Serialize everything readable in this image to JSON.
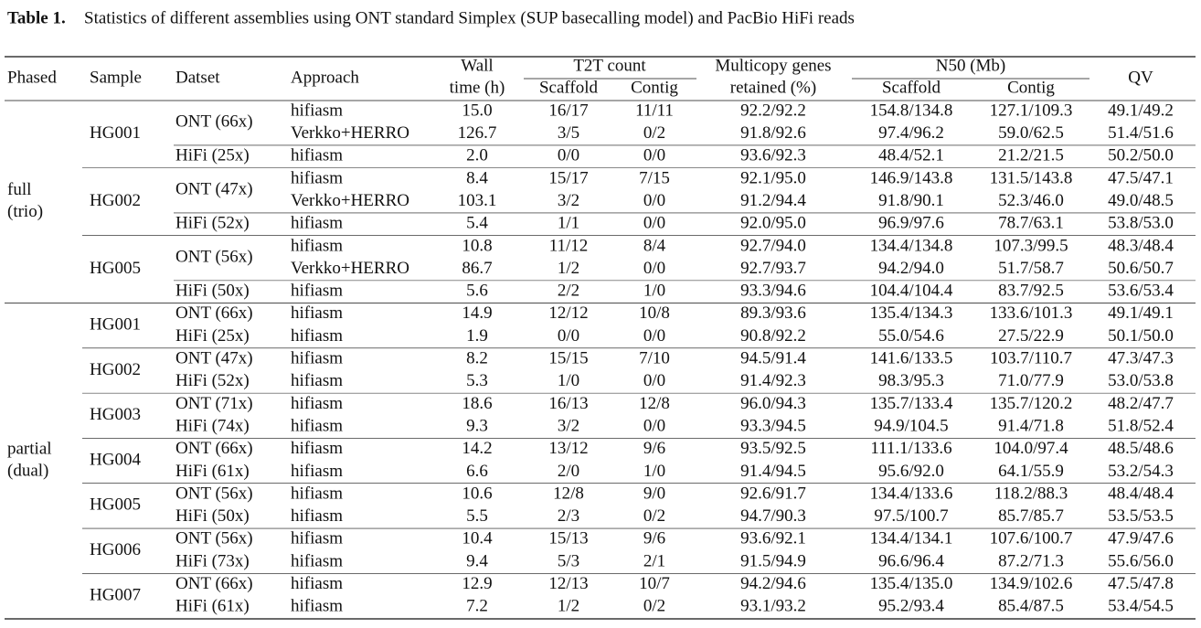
{
  "caption": {
    "label": "Table 1.",
    "text": "Statistics of different assemblies using ONT standard Simplex (SUP basecalling model) and PacBio HiFi reads"
  },
  "table": {
    "header": {
      "phased": "Phased",
      "sample": "Sample",
      "dataset": "Datset",
      "approach": "Approach",
      "wall_time": [
        "Wall",
        "time (h)"
      ],
      "t2t": "T2T count",
      "t2t_scaffold": "Scaffold",
      "t2t_contig": "Contig",
      "multicopy": [
        "Multicopy genes",
        "retained (%)"
      ],
      "n50": "N50 (Mb)",
      "n50_scaffold": "Scaffold",
      "n50_contig": "Contig",
      "qv": "QV"
    },
    "groups": [
      {
        "phased": [
          "full",
          "(trio)"
        ],
        "samples": [
          {
            "sample": "HG001",
            "datasets": [
              {
                "name": "ONT (66x)",
                "rows": [
                  [
                    "hifiasm",
                    "15.0",
                    "16/17",
                    "11/11",
                    "92.2/92.2",
                    "154.8/134.8",
                    "127.1/109.3",
                    "49.1/49.2"
                  ],
                  [
                    "Verkko+HERRO",
                    "126.7",
                    "3/5",
                    "0/2",
                    "91.8/92.6",
                    "97.4/96.2",
                    "59.0/62.5",
                    "51.4/51.6"
                  ]
                ]
              },
              {
                "name": "HiFi (25x)",
                "rows": [
                  [
                    "hifiasm",
                    "2.0",
                    "0/0",
                    "0/0",
                    "93.6/92.3",
                    "48.4/52.1",
                    "21.2/21.5",
                    "50.2/50.0"
                  ]
                ]
              }
            ]
          },
          {
            "sample": "HG002",
            "datasets": [
              {
                "name": "ONT (47x)",
                "rows": [
                  [
                    "hifiasm",
                    "8.4",
                    "15/17",
                    "7/15",
                    "92.1/95.0",
                    "146.9/143.8",
                    "131.5/143.8",
                    "47.5/47.1"
                  ],
                  [
                    "Verkko+HERRO",
                    "103.1",
                    "3/2",
                    "0/0",
                    "91.2/94.4",
                    "91.8/90.1",
                    "52.3/46.0",
                    "49.0/48.5"
                  ]
                ]
              },
              {
                "name": "HiFi (52x)",
                "rows": [
                  [
                    "hifiasm",
                    "5.4",
                    "1/1",
                    "0/0",
                    "92.0/95.0",
                    "96.9/97.6",
                    "78.7/63.1",
                    "53.8/53.0"
                  ]
                ]
              }
            ]
          },
          {
            "sample": "HG005",
            "datasets": [
              {
                "name": "ONT (56x)",
                "rows": [
                  [
                    "hifiasm",
                    "10.8",
                    "11/12",
                    "8/4",
                    "92.7/94.0",
                    "134.4/134.8",
                    "107.3/99.5",
                    "48.3/48.4"
                  ],
                  [
                    "Verkko+HERRO",
                    "86.7",
                    "1/2",
                    "0/0",
                    "92.7/93.7",
                    "94.2/94.0",
                    "51.7/58.7",
                    "50.6/50.7"
                  ]
                ]
              },
              {
                "name": "HiFi (50x)",
                "rows": [
                  [
                    "hifiasm",
                    "5.6",
                    "2/2",
                    "1/0",
                    "93.3/94.6",
                    "104.4/104.4",
                    "83.7/92.5",
                    "53.6/53.4"
                  ]
                ]
              }
            ]
          }
        ]
      },
      {
        "phased": [
          "partial",
          "(dual)"
        ],
        "samples": [
          {
            "sample": "HG001",
            "datasets": [
              {
                "name": "ONT (66x)",
                "rows": [
                  [
                    "hifiasm",
                    "14.9",
                    "12/12",
                    "10/8",
                    "89.3/93.6",
                    "135.4/134.3",
                    "133.6/101.3",
                    "49.1/49.1"
                  ]
                ]
              },
              {
                "name": "HiFi (25x)",
                "rows": [
                  [
                    "hifiasm",
                    "1.9",
                    "0/0",
                    "0/0",
                    "90.8/92.2",
                    "55.0/54.6",
                    "27.5/22.9",
                    "50.1/50.0"
                  ]
                ]
              }
            ]
          },
          {
            "sample": "HG002",
            "datasets": [
              {
                "name": "ONT (47x)",
                "rows": [
                  [
                    "hifiasm",
                    "8.2",
                    "15/15",
                    "7/10",
                    "94.5/91.4",
                    "141.6/133.5",
                    "103.7/110.7",
                    "47.3/47.3"
                  ]
                ]
              },
              {
                "name": "HiFi (52x)",
                "rows": [
                  [
                    "hifiasm",
                    "5.3",
                    "1/0",
                    "0/0",
                    "91.4/92.3",
                    "98.3/95.3",
                    "71.0/77.9",
                    "53.0/53.8"
                  ]
                ]
              }
            ]
          },
          {
            "sample": "HG003",
            "datasets": [
              {
                "name": "ONT (71x)",
                "rows": [
                  [
                    "hifiasm",
                    "18.6",
                    "16/13",
                    "12/8",
                    "96.0/94.3",
                    "135.7/133.4",
                    "135.7/120.2",
                    "48.2/47.7"
                  ]
                ]
              },
              {
                "name": "HiFi (74x)",
                "rows": [
                  [
                    "hifiasm",
                    "9.3",
                    "3/2",
                    "0/0",
                    "93.3/94.5",
                    "94.9/104.5",
                    "91.4/71.8",
                    "51.8/52.4"
                  ]
                ]
              }
            ]
          },
          {
            "sample": "HG004",
            "datasets": [
              {
                "name": "ONT (66x)",
                "rows": [
                  [
                    "hifiasm",
                    "14.2",
                    "13/12",
                    "9/6",
                    "93.5/92.5",
                    "111.1/133.6",
                    "104.0/97.4",
                    "48.5/48.6"
                  ]
                ]
              },
              {
                "name": "HiFi (61x)",
                "rows": [
                  [
                    "hifiasm",
                    "6.6",
                    "2/0",
                    "1/0",
                    "91.4/94.5",
                    "95.6/92.0",
                    "64.1/55.9",
                    "53.2/54.3"
                  ]
                ]
              }
            ]
          },
          {
            "sample": "HG005",
            "datasets": [
              {
                "name": "ONT (56x)",
                "rows": [
                  [
                    "hifiasm",
                    "10.6",
                    "12/8",
                    "9/0",
                    "92.6/91.7",
                    "134.4/133.6",
                    "118.2/88.3",
                    "48.4/48.4"
                  ]
                ]
              },
              {
                "name": "HiFi (50x)",
                "rows": [
                  [
                    "hifiasm",
                    "5.5",
                    "2/3",
                    "0/2",
                    "94.7/90.3",
                    "97.5/100.7",
                    "85.7/85.7",
                    "53.5/53.5"
                  ]
                ]
              }
            ]
          },
          {
            "sample": "HG006",
            "datasets": [
              {
                "name": "ONT (56x)",
                "rows": [
                  [
                    "hifiasm",
                    "10.4",
                    "15/13",
                    "9/6",
                    "93.6/92.1",
                    "134.4/134.1",
                    "107.6/100.7",
                    "47.9/47.6"
                  ]
                ]
              },
              {
                "name": "HiFi (73x)",
                "rows": [
                  [
                    "hifiasm",
                    "9.4",
                    "5/3",
                    "2/1",
                    "91.5/94.9",
                    "96.6/96.4",
                    "87.2/71.3",
                    "55.6/56.0"
                  ]
                ]
              }
            ]
          },
          {
            "sample": "HG007",
            "datasets": [
              {
                "name": "ONT (66x)",
                "rows": [
                  [
                    "hifiasm",
                    "12.9",
                    "12/13",
                    "10/7",
                    "94.2/94.6",
                    "135.4/135.0",
                    "134.9/102.6",
                    "47.5/47.8"
                  ]
                ]
              },
              {
                "name": "HiFi (61x)",
                "rows": [
                  [
                    "hifiasm",
                    "7.2",
                    "1/2",
                    "0/2",
                    "93.1/93.2",
                    "95.2/93.4",
                    "85.4/87.5",
                    "53.4/54.5"
                  ]
                ]
              }
            ]
          }
        ]
      }
    ]
  }
}
